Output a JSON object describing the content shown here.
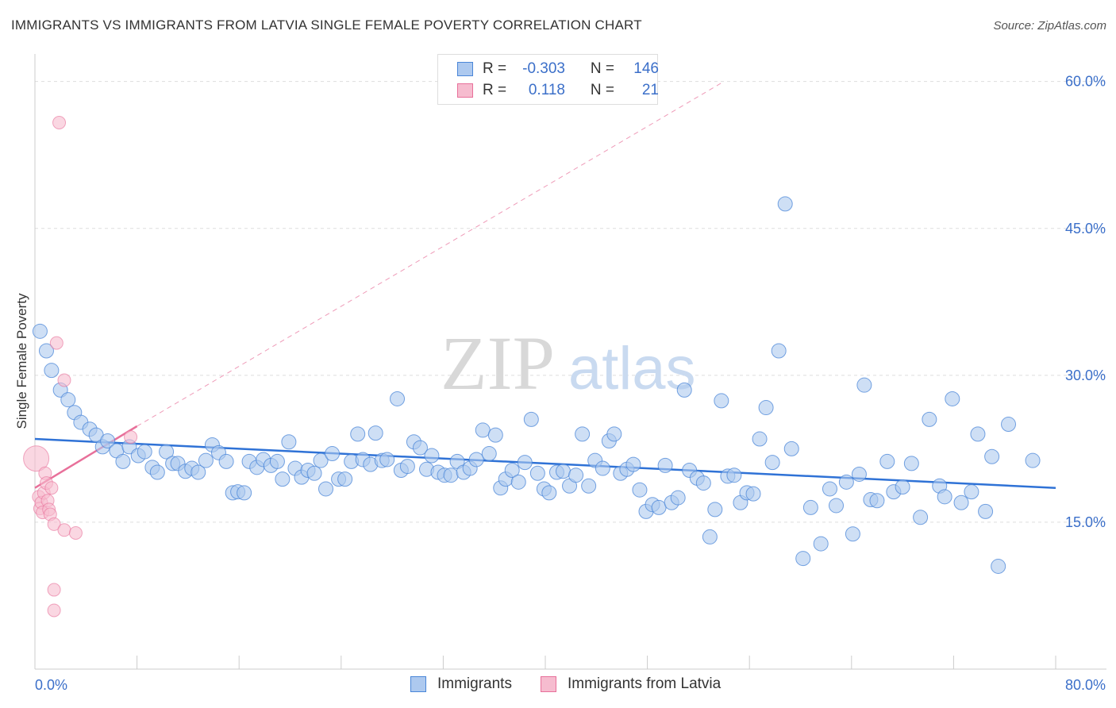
{
  "title": "IMMIGRANTS VS IMMIGRANTS FROM LATVIA SINGLE FEMALE POVERTY CORRELATION CHART",
  "source": "Source: ZipAtlas.com",
  "watermark": {
    "zip": "ZIP",
    "atlas": "atlas"
  },
  "colors": {
    "blue": "#4a86d8",
    "blue_fill": "#adc9ef",
    "pink": "#e8709a",
    "pink_fill": "#f6bccf",
    "grid": "#dddddd",
    "axis_text": "#3b6fc9"
  },
  "legend_top": {
    "rows": [
      {
        "r_label": "R =",
        "r_value": "-0.303",
        "n_label": "N =",
        "n_value": "146"
      },
      {
        "r_label": "R =",
        "r_value": "0.118",
        "n_label": "N =",
        "n_value": "21"
      }
    ]
  },
  "legend_bottom": [
    "Immigrants",
    "Immigrants from Latvia"
  ],
  "chart_data": {
    "type": "scatter",
    "ylabel": "Single Female Poverty",
    "xlim": [
      0,
      80
    ],
    "ylim": [
      0,
      62
    ],
    "x_ticks_labels": [
      "0.0%",
      "80.0%"
    ],
    "y_ticks": [
      15,
      30,
      45,
      60
    ],
    "y_tick_labels": [
      "15.0%",
      "30.0%",
      "45.0%",
      "60.0%"
    ],
    "grid": true,
    "legend_placement": "bottom",
    "series": [
      {
        "name": "Immigrants",
        "trend": {
          "x": [
            0,
            80
          ],
          "y": [
            23.5,
            18.5
          ]
        },
        "points": [
          [
            0.4,
            34.5
          ],
          [
            0.9,
            32.5
          ],
          [
            1.3,
            30.5
          ],
          [
            2.0,
            28.5
          ],
          [
            2.6,
            27.5
          ],
          [
            3.1,
            26.2
          ],
          [
            3.6,
            25.2
          ],
          [
            4.3,
            24.5
          ],
          [
            4.8,
            23.9
          ],
          [
            5.3,
            22.7
          ],
          [
            5.7,
            23.3
          ],
          [
            6.4,
            22.3
          ],
          [
            6.9,
            21.2
          ],
          [
            7.4,
            22.7
          ],
          [
            8.1,
            21.8
          ],
          [
            8.6,
            22.2
          ],
          [
            9.2,
            20.6
          ],
          [
            9.6,
            20.1
          ],
          [
            10.3,
            22.2
          ],
          [
            10.8,
            21.0
          ],
          [
            11.2,
            21.0
          ],
          [
            11.8,
            20.2
          ],
          [
            12.3,
            20.5
          ],
          [
            12.8,
            20.1
          ],
          [
            13.4,
            21.3
          ],
          [
            13.9,
            22.9
          ],
          [
            14.4,
            22.1
          ],
          [
            15.0,
            21.2
          ],
          [
            15.5,
            18.0
          ],
          [
            15.9,
            18.1
          ],
          [
            16.4,
            18.0
          ],
          [
            16.8,
            21.2
          ],
          [
            17.4,
            20.6
          ],
          [
            17.9,
            21.4
          ],
          [
            18.5,
            20.8
          ],
          [
            19.0,
            21.2
          ],
          [
            19.4,
            19.4
          ],
          [
            19.9,
            23.2
          ],
          [
            20.4,
            20.5
          ],
          [
            20.9,
            19.6
          ],
          [
            21.4,
            20.3
          ],
          [
            21.9,
            20.0
          ],
          [
            22.4,
            21.3
          ],
          [
            22.8,
            18.4
          ],
          [
            23.3,
            22.0
          ],
          [
            23.8,
            19.4
          ],
          [
            24.3,
            19.4
          ],
          [
            24.8,
            21.2
          ],
          [
            25.3,
            24.0
          ],
          [
            25.7,
            21.4
          ],
          [
            26.3,
            20.9
          ],
          [
            26.7,
            24.1
          ],
          [
            27.2,
            21.3
          ],
          [
            27.6,
            21.4
          ],
          [
            28.4,
            27.6
          ],
          [
            28.7,
            20.3
          ],
          [
            29.2,
            20.7
          ],
          [
            29.7,
            23.2
          ],
          [
            30.2,
            22.6
          ],
          [
            30.7,
            20.4
          ],
          [
            31.1,
            21.8
          ],
          [
            31.6,
            20.1
          ],
          [
            32.1,
            19.8
          ],
          [
            32.6,
            19.8
          ],
          [
            33.1,
            21.2
          ],
          [
            33.6,
            20.1
          ],
          [
            34.1,
            20.5
          ],
          [
            34.6,
            21.4
          ],
          [
            35.1,
            24.4
          ],
          [
            35.6,
            22.0
          ],
          [
            36.1,
            23.9
          ],
          [
            36.5,
            18.5
          ],
          [
            36.9,
            19.4
          ],
          [
            37.4,
            20.3
          ],
          [
            37.9,
            19.1
          ],
          [
            38.4,
            21.1
          ],
          [
            38.9,
            25.5
          ],
          [
            39.4,
            20.0
          ],
          [
            39.9,
            18.4
          ],
          [
            40.3,
            18.0
          ],
          [
            40.9,
            20.1
          ],
          [
            41.4,
            20.2
          ],
          [
            41.9,
            18.7
          ],
          [
            42.4,
            19.8
          ],
          [
            42.9,
            24.0
          ],
          [
            43.4,
            18.7
          ],
          [
            43.9,
            21.3
          ],
          [
            44.5,
            20.5
          ],
          [
            45.0,
            23.3
          ],
          [
            45.4,
            24.0
          ],
          [
            45.9,
            20.0
          ],
          [
            46.4,
            20.4
          ],
          [
            46.9,
            20.9
          ],
          [
            47.4,
            18.3
          ],
          [
            47.9,
            16.1
          ],
          [
            48.4,
            16.8
          ],
          [
            48.9,
            16.5
          ],
          [
            49.4,
            20.8
          ],
          [
            49.9,
            17.0
          ],
          [
            50.4,
            17.5
          ],
          [
            50.9,
            28.5
          ],
          [
            51.3,
            20.3
          ],
          [
            51.9,
            19.5
          ],
          [
            52.4,
            19.0
          ],
          [
            52.9,
            13.5
          ],
          [
            53.3,
            16.3
          ],
          [
            53.8,
            27.4
          ],
          [
            54.3,
            19.7
          ],
          [
            54.8,
            19.8
          ],
          [
            55.3,
            17.0
          ],
          [
            55.8,
            18.0
          ],
          [
            56.3,
            17.9
          ],
          [
            56.8,
            23.5
          ],
          [
            57.3,
            26.7
          ],
          [
            57.8,
            21.1
          ],
          [
            58.3,
            32.5
          ],
          [
            58.8,
            47.5
          ],
          [
            59.3,
            22.5
          ],
          [
            60.2,
            11.3
          ],
          [
            60.8,
            16.5
          ],
          [
            61.6,
            12.8
          ],
          [
            62.3,
            18.4
          ],
          [
            62.8,
            16.7
          ],
          [
            63.6,
            19.1
          ],
          [
            64.1,
            13.8
          ],
          [
            64.6,
            19.9
          ],
          [
            65.0,
            29.0
          ],
          [
            65.5,
            17.3
          ],
          [
            66.0,
            17.2
          ],
          [
            66.8,
            21.2
          ],
          [
            67.3,
            18.1
          ],
          [
            68.0,
            18.6
          ],
          [
            68.7,
            21.0
          ],
          [
            69.4,
            15.5
          ],
          [
            70.1,
            25.5
          ],
          [
            70.9,
            18.7
          ],
          [
            71.3,
            17.6
          ],
          [
            71.9,
            27.6
          ],
          [
            72.6,
            17.0
          ],
          [
            73.4,
            18.1
          ],
          [
            73.9,
            24.0
          ],
          [
            74.5,
            16.1
          ],
          [
            75.0,
            21.7
          ],
          [
            75.5,
            10.5
          ],
          [
            76.3,
            25.0
          ],
          [
            78.2,
            21.3
          ]
        ]
      },
      {
        "name": "Immigrants from Latvia",
        "trend": {
          "x": [
            0,
            8
          ],
          "y": [
            18.5,
            24.8
          ]
        },
        "trend_dashed": {
          "x": [
            8,
            54
          ],
          "y": [
            24.8,
            60
          ]
        },
        "points": [
          [
            0.1,
            21.5
          ],
          [
            0.3,
            17.6
          ],
          [
            0.4,
            16.4
          ],
          [
            0.5,
            17.0
          ],
          [
            0.6,
            16.0
          ],
          [
            0.7,
            18.0
          ],
          [
            0.8,
            20.0
          ],
          [
            0.9,
            19.0
          ],
          [
            1.0,
            17.2
          ],
          [
            1.1,
            16.3
          ],
          [
            1.2,
            15.8
          ],
          [
            1.3,
            18.5
          ],
          [
            1.5,
            14.8
          ],
          [
            1.7,
            33.3
          ],
          [
            2.3,
            29.5
          ],
          [
            1.5,
            8.1
          ],
          [
            1.5,
            6.0
          ],
          [
            2.3,
            14.2
          ],
          [
            3.2,
            13.9
          ],
          [
            1.9,
            55.8
          ],
          [
            7.5,
            23.7
          ]
        ]
      }
    ]
  }
}
